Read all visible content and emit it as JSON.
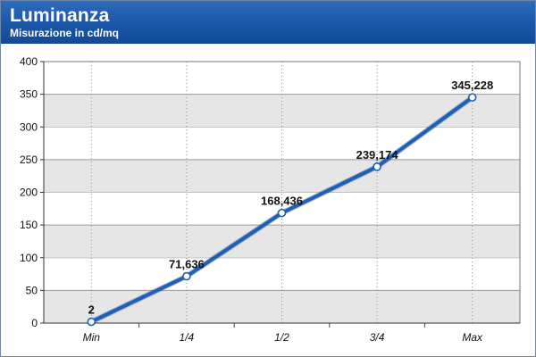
{
  "header": {
    "title": "Luminanza",
    "subtitle": "Misurazione in cd/mq"
  },
  "colors": {
    "header_blue": "#1a56a6",
    "band_gray": "#e6e6e6",
    "line_blue": "#1f5fb5"
  },
  "chart_data": {
    "type": "line",
    "title": "Luminanza",
    "subtitle": "Misurazione in cd/mq",
    "categories": [
      "Min",
      "1/4",
      "1/2",
      "3/4",
      "Max"
    ],
    "series": [
      {
        "values": [
          2,
          71.636,
          168.436,
          239.174,
          345.228
        ]
      }
    ],
    "data_labels": [
      "2",
      "71,636",
      "168,436",
      "239,174",
      "345,228"
    ],
    "yticks": [
      "0",
      "50",
      "100",
      "150",
      "200",
      "250",
      "300",
      "350",
      "400"
    ],
    "ylim": [
      0,
      400
    ],
    "grid": true,
    "legend": "none"
  }
}
